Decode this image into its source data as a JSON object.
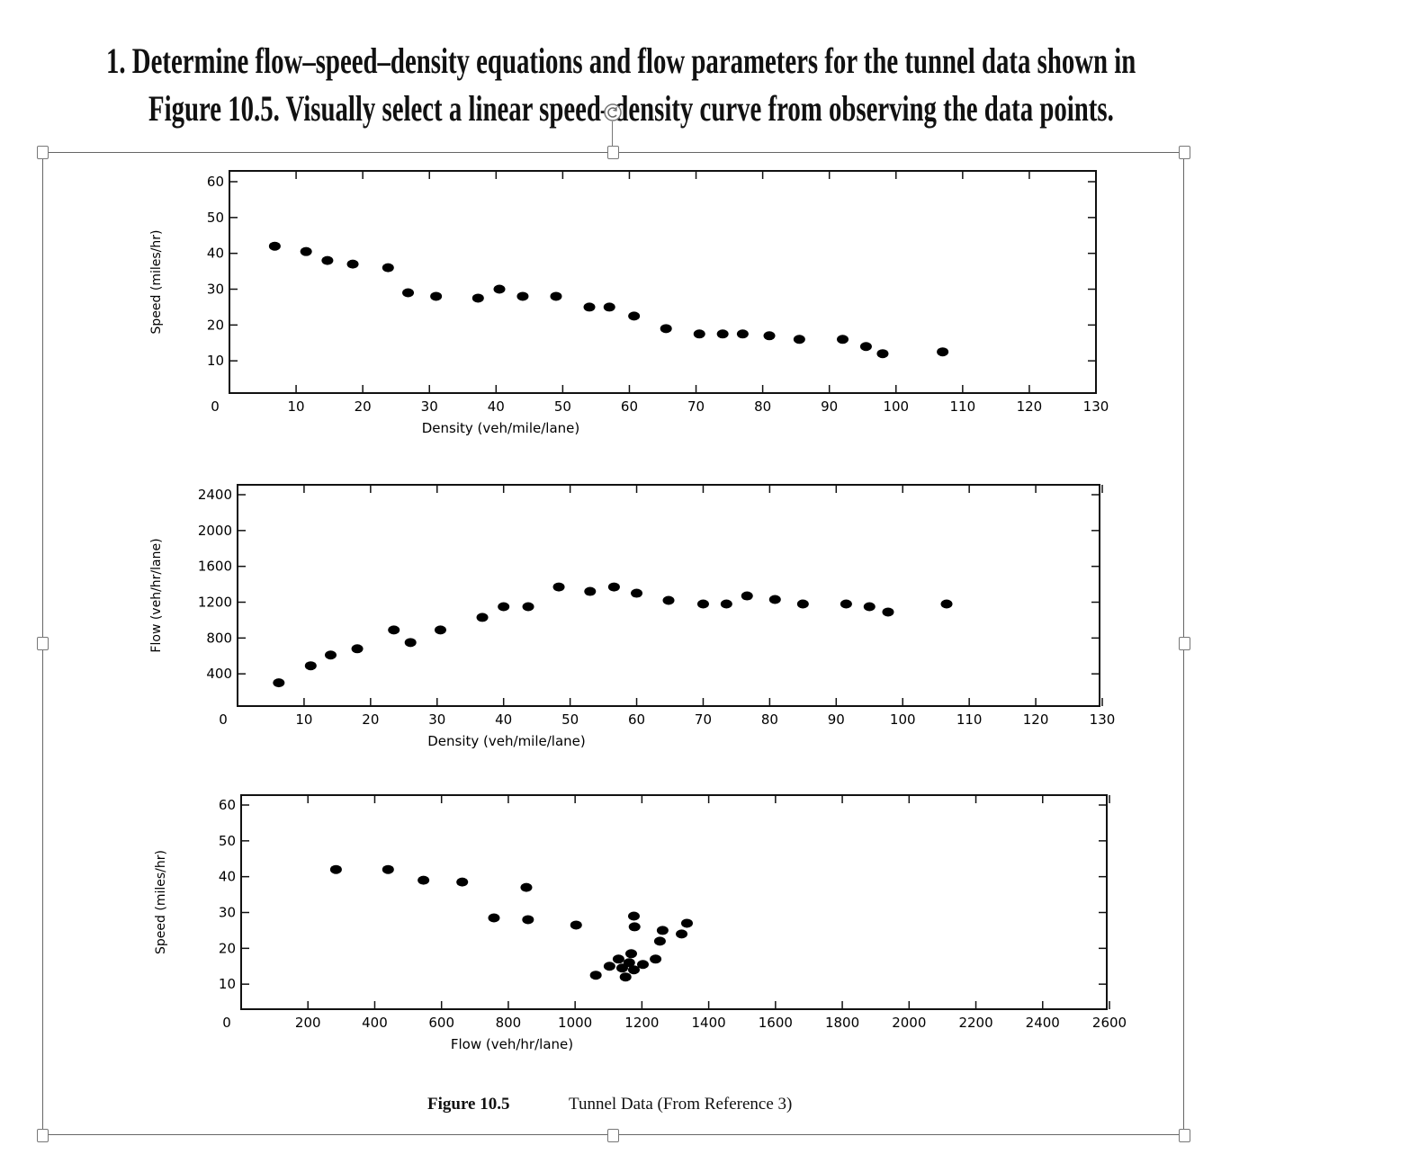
{
  "question": {
    "line1": "1. Determine flow–speed–density equations and flow parameters for the tunnel data shown in",
    "line2": "Figure 10.5.  Visually select a linear speed–density curve from observing the data points."
  },
  "caption": {
    "figure": "Figure 10.5",
    "text": "Tunnel Data (From Reference 3)"
  },
  "chart_data": [
    {
      "type": "scatter",
      "xlabel": "Density (veh/mile/lane)",
      "ylabel": "Speed (miles/hr)",
      "xlim": [
        0,
        130
      ],
      "ylim": [
        0,
        60
      ],
      "xticks": [
        0,
        10,
        20,
        30,
        40,
        50,
        60,
        70,
        80,
        90,
        100,
        110,
        120,
        130
      ],
      "yticks": [
        10,
        20,
        30,
        40,
        50,
        60
      ],
      "x": [
        6.8,
        11.5,
        14.7,
        18.5,
        23.8,
        26.8,
        31,
        37.3,
        40.5,
        44,
        49,
        54,
        57,
        60.7,
        65.5,
        70.5,
        74,
        77,
        81,
        85.5,
        92,
        95.5,
        98,
        107
      ],
      "y": [
        42,
        40.5,
        38,
        37,
        36,
        29,
        28,
        27.5,
        30,
        28,
        28,
        25,
        25,
        22.5,
        19,
        17.5,
        17.5,
        17.5,
        17,
        16,
        16,
        14,
        12,
        12.5
      ]
    },
    {
      "type": "scatter",
      "xlabel": "Density (veh/mile/lane)",
      "ylabel": "Flow (veh/hr/lane)",
      "xlim": [
        0,
        130
      ],
      "ylim": [
        0,
        2400
      ],
      "xticks": [
        0,
        10,
        20,
        30,
        40,
        50,
        60,
        70,
        80,
        90,
        100,
        110,
        120,
        130
      ],
      "yticks": [
        400,
        800,
        1200,
        1600,
        2000,
        2400
      ],
      "x": [
        6.2,
        11,
        14,
        18,
        23.5,
        26,
        30.5,
        36.8,
        40,
        43.7,
        48.3,
        53,
        56.6,
        60,
        64.8,
        70,
        73.5,
        76.6,
        80.8,
        85,
        91.5,
        95,
        97.8,
        106.6
      ],
      "y": [
        300,
        490,
        610,
        680,
        890,
        750,
        890,
        1030,
        1150,
        1150,
        1370,
        1320,
        1370,
        1300,
        1220,
        1180,
        1180,
        1270,
        1230,
        1180,
        1180,
        1150,
        1090,
        1180
      ]
    },
    {
      "type": "scatter",
      "xlabel": "Flow (veh/hr/lane)",
      "ylabel": "Speed (miles/hr)",
      "xlim": [
        0,
        2600
      ],
      "ylim": [
        0,
        60
      ],
      "xticks": [
        0,
        200,
        400,
        600,
        800,
        1000,
        1200,
        1400,
        1600,
        1800,
        2000,
        2200,
        2400,
        2600
      ],
      "yticks": [
        10,
        20,
        30,
        40,
        50,
        60
      ],
      "x": [
        284,
        440,
        546,
        662,
        854,
        757,
        859,
        1003,
        1176,
        1178,
        1262,
        1254,
        1335,
        1319,
        1062,
        1103,
        1130,
        1168,
        1162,
        1141,
        1176,
        1151,
        1203,
        1241
      ],
      "y": [
        42,
        42,
        39,
        38.5,
        37,
        28.5,
        28,
        26.5,
        29,
        26,
        25,
        22,
        27,
        24,
        12.5,
        15,
        17,
        18.5,
        16,
        14.5,
        14,
        12,
        15.5,
        17
      ]
    }
  ]
}
